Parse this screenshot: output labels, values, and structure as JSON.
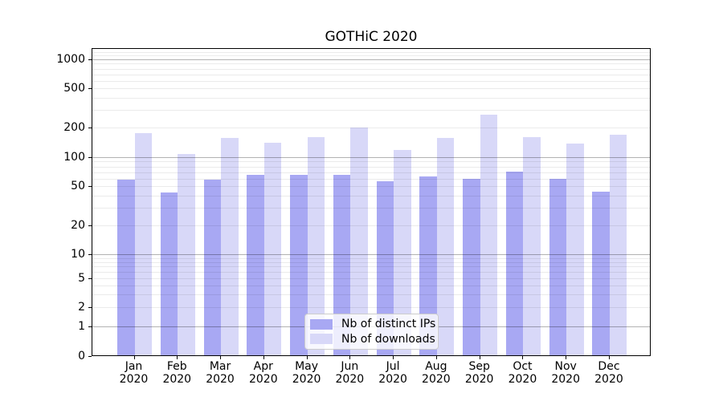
{
  "title": "GOTHiC 2020",
  "chart_data": {
    "type": "bar",
    "title": "GOTHiC 2020",
    "scale": "symlog-like",
    "grid": true,
    "legend_position": "lower center",
    "year": "2020",
    "months": [
      "Jan",
      "Feb",
      "Mar",
      "Apr",
      "May",
      "Jun",
      "Jul",
      "Aug",
      "Sep",
      "Oct",
      "Nov",
      "Dec"
    ],
    "series": [
      {
        "name": "Nb of distinct IPs",
        "color": "#a8a8f3",
        "values": [
          58,
          43,
          58,
          65,
          66,
          66,
          56,
          63,
          60,
          71,
          60,
          44
        ]
      },
      {
        "name": "Nb of downloads",
        "color": "#d8d8f8",
        "values": [
          176,
          108,
          158,
          141,
          160,
          200,
          119,
          156,
          268,
          160,
          137,
          170
        ]
      }
    ],
    "yticks": [
      0,
      1,
      2,
      5,
      10,
      20,
      50,
      100,
      200,
      500,
      1000
    ],
    "yticks_minor": [
      3,
      4,
      6,
      7,
      8,
      9,
      30,
      40,
      60,
      70,
      80,
      90,
      300,
      400,
      600,
      700,
      800,
      900,
      1100,
      1200,
      1300
    ],
    "ylim": [
      0,
      1300
    ]
  },
  "colors": {
    "grid_major": "rgba(0,0,0,0.30)",
    "grid_minor": "rgba(0,0,0,0.08)",
    "axis": "#000000",
    "background": "#ffffff"
  }
}
